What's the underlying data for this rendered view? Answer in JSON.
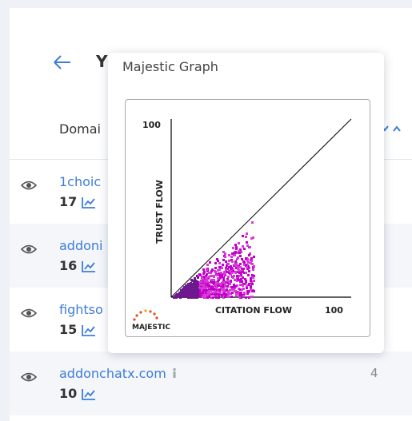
{
  "header": {
    "title_fragment": "Y",
    "column": "Domai"
  },
  "rows": [
    {
      "domain": "1choic",
      "count": 17
    },
    {
      "domain": "addoni",
      "count": 16
    },
    {
      "domain": "fightso",
      "count": 15
    },
    {
      "domain": "addonchatx.com",
      "count": 10,
      "value": 4
    }
  ],
  "popup": {
    "title": "Majestic Graph",
    "graph": {
      "y_max": "100",
      "y_label": "TRUST FLOW",
      "x_label": "CITATION FLOW",
      "x_max": "100",
      "logo": "MAJESTIC"
    }
  }
}
